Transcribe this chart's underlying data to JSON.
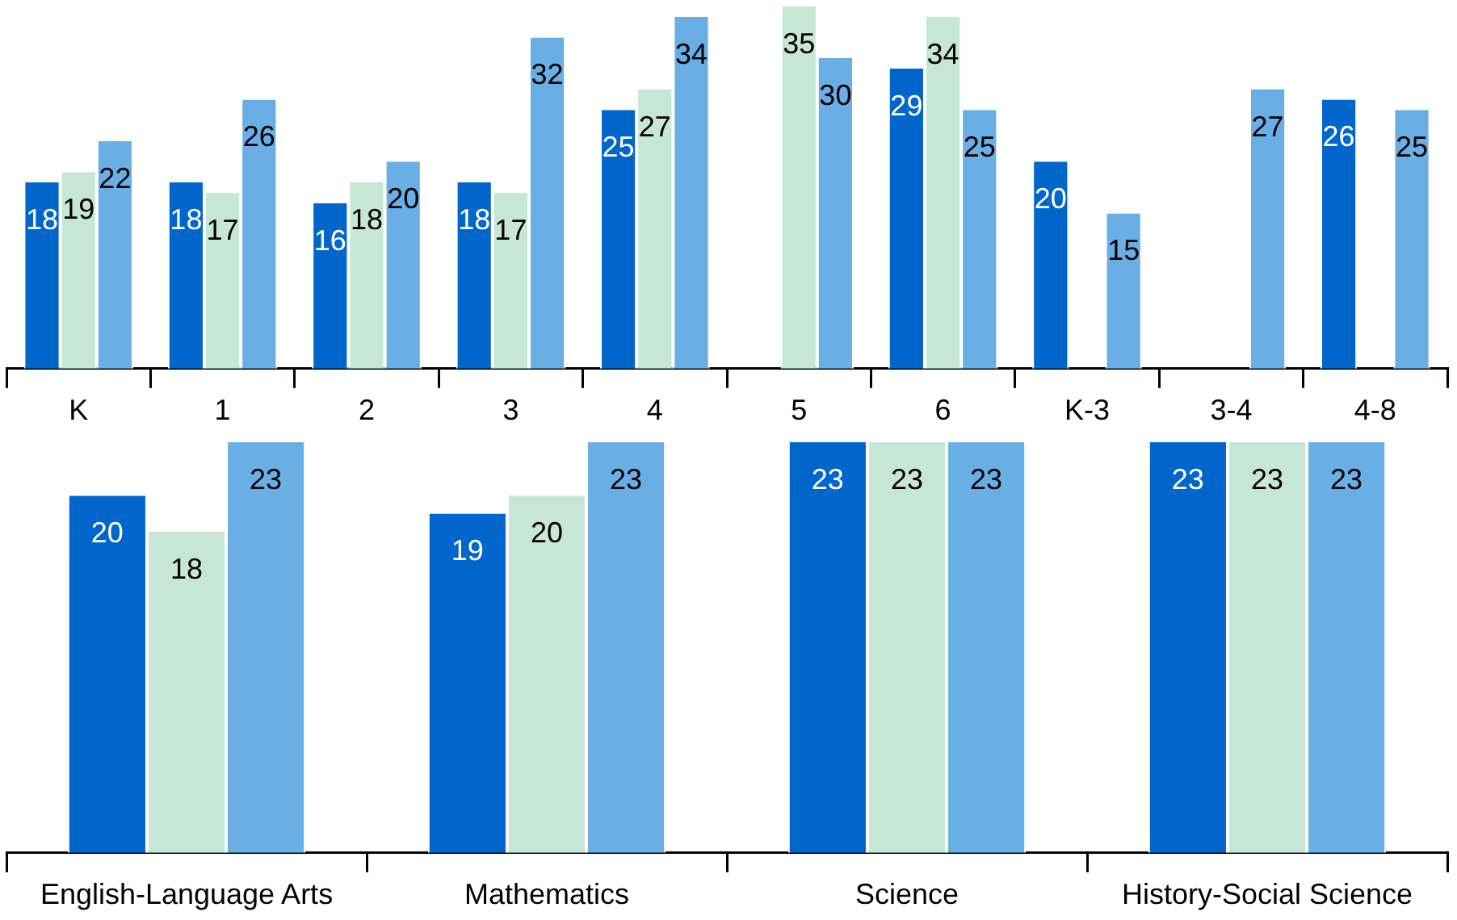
{
  "chart_data": [
    {
      "type": "bar",
      "categories": [
        "K",
        "1",
        "2",
        "3",
        "4",
        "5",
        "6",
        "K-3",
        "3-4",
        "4-8"
      ],
      "series": [
        {
          "color": "#0066cc",
          "values": [
            18,
            18,
            16,
            18,
            25,
            null,
            29,
            20,
            null,
            26
          ]
        },
        {
          "color": "#c8e6d8",
          "values": [
            19,
            17,
            18,
            17,
            27,
            35,
            34,
            null,
            null,
            null
          ]
        },
        {
          "color": "#6aaee6",
          "values": [
            22,
            26,
            20,
            32,
            34,
            30,
            25,
            15,
            27,
            25
          ]
        }
      ],
      "ylim": [
        0,
        35
      ],
      "tick_labels": "x",
      "data_labels": true,
      "grid": false,
      "legend": false
    },
    {
      "type": "bar",
      "categories": [
        "English-Language Arts",
        "Mathematics",
        "Science",
        "History-Social Science"
      ],
      "series": [
        {
          "color": "#0066cc",
          "values": [
            20,
            19,
            23,
            23
          ]
        },
        {
          "color": "#c8e6d8",
          "values": [
            18,
            20,
            23,
            23
          ]
        },
        {
          "color": "#6aaee6",
          "values": [
            23,
            23,
            23,
            23
          ]
        }
      ],
      "ylim": [
        0,
        23
      ],
      "tick_labels": "x",
      "data_labels": true,
      "grid": false,
      "legend": false
    }
  ]
}
